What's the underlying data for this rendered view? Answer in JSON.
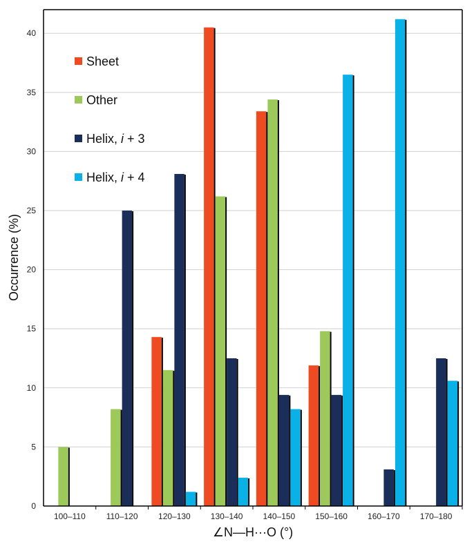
{
  "chart_data": {
    "type": "bar",
    "categories": [
      "100–110",
      "110–120",
      "120–130",
      "130–140",
      "140–150",
      "150–160",
      "160–170",
      "170–180"
    ],
    "series": [
      {
        "name": "Sheet",
        "color": "#ef4b23",
        "values": [
          0,
          0,
          14.3,
          40.5,
          33.4,
          11.9,
          0,
          0
        ]
      },
      {
        "name": "Other",
        "color": "#9dc95b",
        "values": [
          5.0,
          8.2,
          11.5,
          26.2,
          34.4,
          14.8,
          0,
          0
        ]
      },
      {
        "name_parts": [
          "Helix, ",
          "i",
          " + 3"
        ],
        "color": "#1b2e5a",
        "values": [
          0,
          25.0,
          28.1,
          12.5,
          9.4,
          9.4,
          3.1,
          12.5
        ]
      },
      {
        "name_parts": [
          "Helix, ",
          "i",
          " + 4"
        ],
        "color": "#0ab1e6",
        "values": [
          0,
          0,
          1.2,
          2.4,
          8.2,
          36.5,
          41.2,
          10.6
        ]
      }
    ],
    "xlabel": "∠N—H···O (°)",
    "ylabel": "Occurrence (%)",
    "ylim": [
      0,
      42
    ],
    "yticks": [
      0,
      5,
      10,
      15,
      20,
      25,
      30,
      35,
      40
    ],
    "grid": "horizontal",
    "legend": "top-left"
  }
}
